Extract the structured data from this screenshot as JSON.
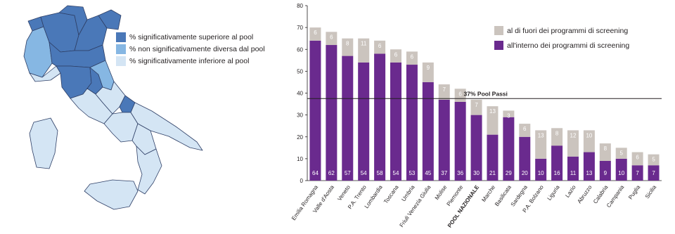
{
  "map": {
    "colors": {
      "superior": "#4a78b8",
      "not_different": "#86b7e3",
      "inferior": "#d4e5f4",
      "border": "#2e3f66"
    },
    "legend": [
      {
        "key": "superior",
        "label": "% significativamente superiore al pool"
      },
      {
        "key": "not_different",
        "label": "% non significativamente diversa dal pool"
      },
      {
        "key": "inferior",
        "label": "% significativamente inferiore al pool"
      }
    ]
  },
  "chart_data": {
    "type": "bar",
    "stacked": true,
    "categories": [
      "Emilia Romagna",
      "Valle d'Aosta",
      "Veneto",
      "P.A. Trento",
      "Lombardia",
      "Toscana",
      "Umbria",
      "Friuli Venezia Giulia",
      "Molise",
      "Piemonte",
      "POOL NAZIONALE",
      "Marche",
      "Basilicata",
      "Sardegna",
      "P.A. Bolzano",
      "Liguria",
      "Lazio",
      "Abruzzo",
      "Calabria",
      "Campania",
      "Puglia",
      "Sicilia"
    ],
    "bold_category": "POOL NAZIONALE",
    "series": [
      {
        "name": "all'interno dei programmi di screening",
        "color": "#6a2a8e",
        "values": [
          64,
          62,
          57,
          54,
          58,
          54,
          53,
          45,
          37,
          36,
          30,
          21,
          29,
          20,
          10,
          16,
          11,
          13,
          9,
          10,
          7,
          7
        ]
      },
      {
        "name": "al di fuori dei programmi di screening",
        "color": "#cbc4be",
        "values": [
          6,
          6,
          8,
          11,
          6,
          6,
          6,
          9,
          7,
          6,
          7,
          13,
          3,
          6,
          13,
          8,
          12,
          10,
          8,
          5,
          6,
          5
        ]
      }
    ],
    "ylim": [
      0,
      80
    ],
    "yticks": [
      0,
      10,
      20,
      30,
      40,
      50,
      60,
      70,
      80
    ],
    "reference_line": {
      "value": 37.5,
      "label": "37% Pool Passi"
    },
    "legend_position": "top-right"
  }
}
